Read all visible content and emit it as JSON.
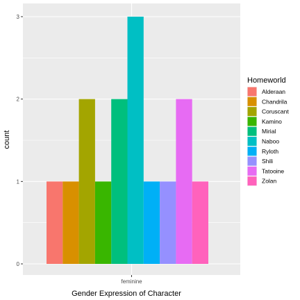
{
  "chart_data": {
    "type": "bar",
    "xlabel": "Gender Expression of Character",
    "ylabel": "count",
    "categories": [
      "feminine"
    ],
    "ylim": [
      0,
      3
    ],
    "yticks": [
      0,
      1,
      2,
      3
    ],
    "grid": true,
    "legend_title": "Homeworld",
    "legend_position": "right",
    "series": [
      {
        "name": "Alderaan",
        "values": [
          1
        ],
        "color": "#F8766D"
      },
      {
        "name": "Chandrila",
        "values": [
          1
        ],
        "color": "#D89000"
      },
      {
        "name": "Coruscant",
        "values": [
          2
        ],
        "color": "#A3A500"
      },
      {
        "name": "Kamino",
        "values": [
          1
        ],
        "color": "#39B600"
      },
      {
        "name": "Mirial",
        "values": [
          2
        ],
        "color": "#00BF7D"
      },
      {
        "name": "Naboo",
        "values": [
          3
        ],
        "color": "#00BFC4"
      },
      {
        "name": "Ryloth",
        "values": [
          1
        ],
        "color": "#00B0F6"
      },
      {
        "name": "Shili",
        "values": [
          1
        ],
        "color": "#9590FF"
      },
      {
        "name": "Tatooine",
        "values": [
          2
        ],
        "color": "#E76BF3"
      },
      {
        "name": "Zolan",
        "values": [
          1
        ],
        "color": "#FF62BC"
      }
    ]
  }
}
